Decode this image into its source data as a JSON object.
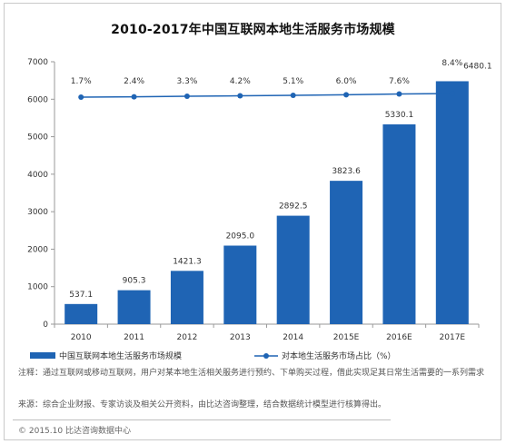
{
  "chart_data": {
    "type": "bar",
    "title": "2010-2017年中国互联网本地生活服务市场规模",
    "categories": [
      "2010",
      "2011",
      "2012",
      "2013",
      "2014",
      "2015E",
      "2016E",
      "2017E"
    ],
    "series": [
      {
        "name": "中国互联网本地生活服务市场规模",
        "type": "bar",
        "values": [
          537.1,
          905.3,
          1421.3,
          2095.0,
          2892.5,
          3823.6,
          5330.1,
          6480.1
        ],
        "labels": [
          "537.1",
          "905.3",
          "1421.3",
          "2095.0",
          "2892.5",
          "3823.6",
          "5330.1",
          "6480.1"
        ],
        "color": "#1f64b4"
      },
      {
        "name": "对本地生活服务市场占比（%）",
        "type": "line",
        "values": [
          1.7,
          2.4,
          3.3,
          4.2,
          5.1,
          6.0,
          7.6,
          8.4
        ],
        "labels": [
          "1.7%",
          "2.4%",
          "3.3%",
          "4.2%",
          "5.1%",
          "6.0%",
          "7.6%",
          "8.4%"
        ],
        "color": "#1f64b4"
      }
    ],
    "ylim": [
      0,
      7000
    ],
    "yticks": [
      "0",
      "1000",
      "2000",
      "3000",
      "4000",
      "5000",
      "6000",
      "7000"
    ],
    "grid": false,
    "legend": "bottom-left"
  },
  "notes": {
    "note1": "注释：通过互联网或移动互联网，用户对某本地生活相关服务进行预约、下单购买过程，借此实现足其日常生活需要的一系列需求",
    "note2": "来源：综合企业财报、专家访谈及相关公开资料，由比达咨询整理，结合数据统计模型进行核算得出。"
  },
  "copyright": "© 2015.10 比达咨询数据中心",
  "colors": {
    "bar": "#1f64b4",
    "line": "#1f64b4",
    "axis": "#9a9a9a"
  }
}
